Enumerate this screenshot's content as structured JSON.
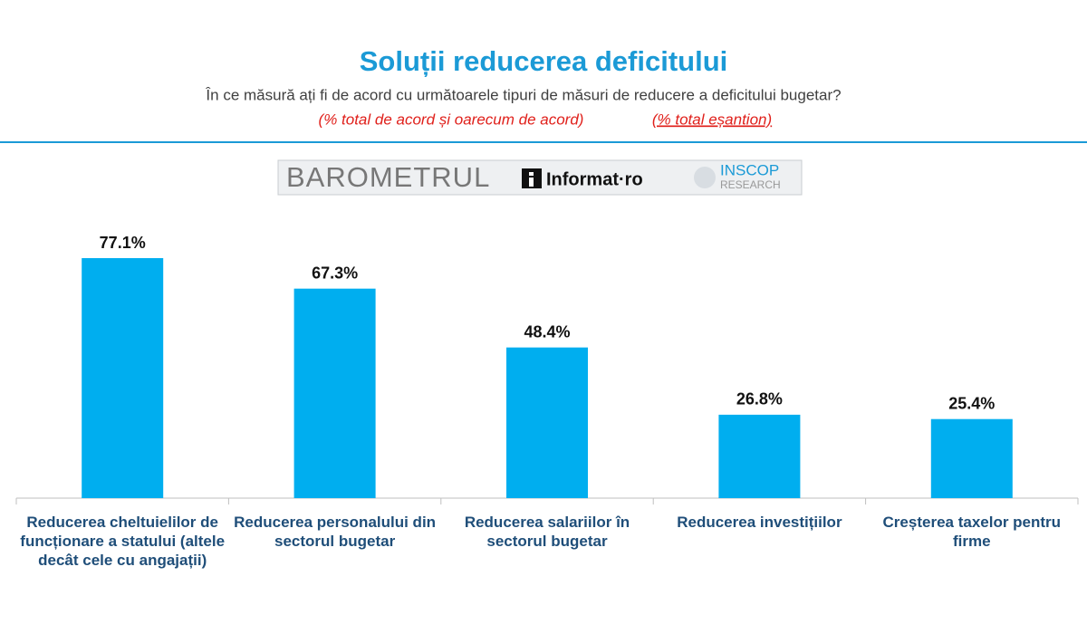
{
  "chart_data": {
    "type": "bar",
    "title": "Soluții reducerea deficitului",
    "subtitle": "În ce măsură ați fi de acord cu următoarele tipuri de măsuri de reducere a deficitului bugetar?",
    "note": "(% total de acord și oarecum de acord)",
    "note_sample": "(% total eșantion)",
    "categories": [
      "Reducerea cheltuielilor de funcționare a statului (altele decât cele cu angajații)",
      "Reducerea personalului din sectorul bugetar",
      "Reducerea salariilor în sectorul bugetar",
      "Reducerea investițiilor",
      "Creșterea taxelor pentru firme"
    ],
    "values": [
      77.1,
      67.3,
      48.4,
      26.8,
      25.4
    ],
    "value_labels": [
      "77.1%",
      "67.3%",
      "48.4%",
      "26.8%",
      "25.4%"
    ],
    "color": "#00aeef"
  },
  "logo": {
    "barometrul": "BAROMETRUL",
    "informat": "Informat·ro",
    "inscop": "INSCOP",
    "research": "RESEARCH"
  }
}
